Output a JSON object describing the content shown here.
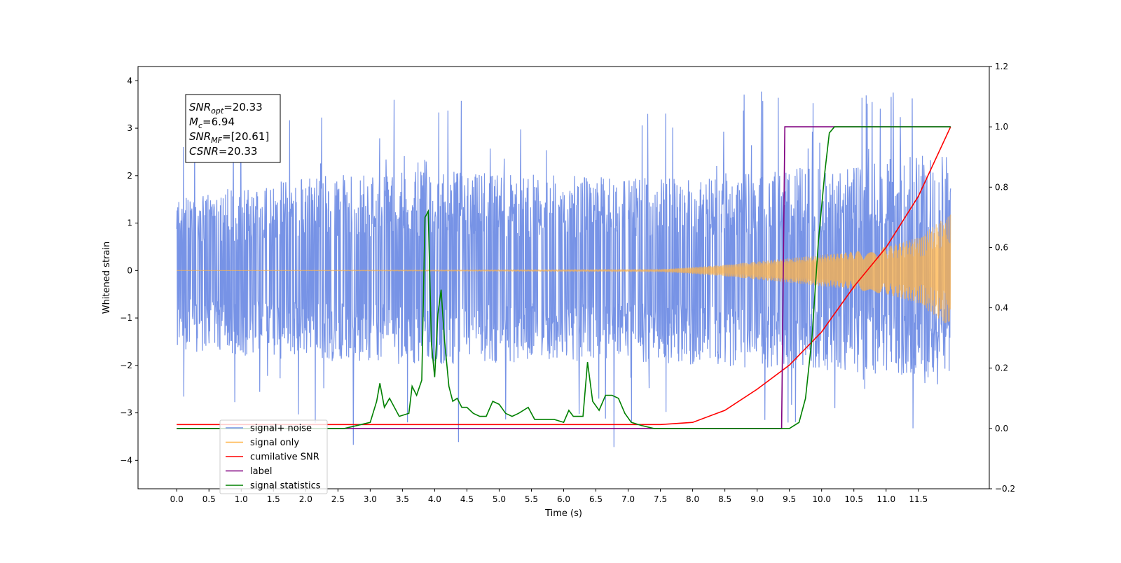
{
  "chart_data": {
    "type": "line",
    "xlabel": "Time (s)",
    "ylabel": "Whitened strain",
    "xlim": [
      -0.6,
      12.6
    ],
    "ylim": [
      -4.6,
      4.3
    ],
    "y2lim": [
      -0.2,
      1.2
    ],
    "x_ticks": [
      "0.0",
      "0.5",
      "1.0",
      "1.5",
      "2.0",
      "2.5",
      "3.0",
      "3.5",
      "4.0",
      "4.5",
      "5.0",
      "5.5",
      "6.0",
      "6.5",
      "7.0",
      "7.5",
      "8.0",
      "8.5",
      "9.0",
      "9.5",
      "10.0",
      "10.5",
      "11.0",
      "11.5"
    ],
    "y_ticks": [
      "4",
      "3",
      "2",
      "1",
      "0",
      "−1",
      "−2",
      "−3",
      "−4"
    ],
    "y2_ticks": [
      "1.2",
      "1.0",
      "0.8",
      "0.6",
      "0.4",
      "0.2",
      "0.0",
      "−0.2"
    ],
    "grid": false,
    "legend_position": "lower-left",
    "annotation": {
      "snr_opt": "=20.33",
      "mc": "=6.94",
      "snr_mf": "=[20.61]",
      "csnr": "=20.33",
      "snr_opt_base": "SNR",
      "snr_opt_sub": "opt",
      "mc_base": "M",
      "mc_sub": "c",
      "snr_mf_base": "SNR",
      "snr_mf_sub": "MF",
      "csnr_base": "CSNR"
    },
    "series": [
      {
        "name": "signal+ noise",
        "axis": "left",
        "color": "#7793e6",
        "description_values": "noise band approx ±2 with spikes to ~±3.9 over t=0..12",
        "envelope_low": [
          [
            0,
            -1.7
          ],
          [
            2,
            -1.9
          ],
          [
            4,
            -2.0
          ],
          [
            6,
            -1.9
          ],
          [
            8,
            -2.0
          ],
          [
            10,
            -2.1
          ],
          [
            12,
            -2.3
          ]
        ],
        "envelope_high": [
          [
            0,
            1.6
          ],
          [
            2,
            2.0
          ],
          [
            4,
            2.1
          ],
          [
            6,
            2.0
          ],
          [
            8,
            2.0
          ],
          [
            10,
            2.2
          ],
          [
            12,
            2.5
          ]
        ]
      },
      {
        "name": "signal only",
        "axis": "left",
        "color": "#ffb347",
        "amplitude": [
          [
            0,
            0.0
          ],
          [
            7.5,
            0.02
          ],
          [
            8.5,
            0.12
          ],
          [
            9.5,
            0.26
          ],
          [
            10.5,
            0.4
          ],
          [
            11.0,
            0.5
          ],
          [
            11.5,
            0.7
          ],
          [
            12.0,
            1.2
          ]
        ]
      },
      {
        "name": "cumilative SNR",
        "axis": "right",
        "color": "#ff0000",
        "points": [
          [
            0,
            0.013
          ],
          [
            7.5,
            0.013
          ],
          [
            8.0,
            0.02
          ],
          [
            8.5,
            0.06
          ],
          [
            9.0,
            0.13
          ],
          [
            9.5,
            0.21
          ],
          [
            10.0,
            0.32
          ],
          [
            10.5,
            0.47
          ],
          [
            11.0,
            0.6
          ],
          [
            11.5,
            0.77
          ],
          [
            12.0,
            1.0
          ]
        ]
      },
      {
        "name": "label",
        "axis": "right",
        "color": "#800080",
        "points": [
          [
            0,
            0.0
          ],
          [
            9.38,
            0.0
          ],
          [
            9.43,
            1.0
          ],
          [
            12.0,
            1.0
          ]
        ]
      },
      {
        "name": "signal statistics",
        "axis": "right",
        "color": "#008000",
        "points": [
          [
            0,
            0.0
          ],
          [
            2.6,
            0.0
          ],
          [
            2.7,
            0.005
          ],
          [
            3.0,
            0.02
          ],
          [
            3.1,
            0.09
          ],
          [
            3.15,
            0.15
          ],
          [
            3.22,
            0.07
          ],
          [
            3.3,
            0.1
          ],
          [
            3.45,
            0.04
          ],
          [
            3.6,
            0.05
          ],
          [
            3.65,
            0.14
          ],
          [
            3.72,
            0.11
          ],
          [
            3.8,
            0.16
          ],
          [
            3.85,
            0.7
          ],
          [
            3.9,
            0.72
          ],
          [
            3.95,
            0.28
          ],
          [
            4.0,
            0.17
          ],
          [
            4.05,
            0.38
          ],
          [
            4.1,
            0.46
          ],
          [
            4.15,
            0.3
          ],
          [
            4.22,
            0.14
          ],
          [
            4.28,
            0.09
          ],
          [
            4.35,
            0.1
          ],
          [
            4.42,
            0.07
          ],
          [
            4.5,
            0.07
          ],
          [
            4.6,
            0.05
          ],
          [
            4.7,
            0.04
          ],
          [
            4.8,
            0.04
          ],
          [
            4.9,
            0.09
          ],
          [
            5.0,
            0.08
          ],
          [
            5.1,
            0.05
          ],
          [
            5.2,
            0.04
          ],
          [
            5.3,
            0.05
          ],
          [
            5.45,
            0.07
          ],
          [
            5.55,
            0.03
          ],
          [
            5.7,
            0.03
          ],
          [
            5.85,
            0.03
          ],
          [
            6.0,
            0.02
          ],
          [
            6.08,
            0.06
          ],
          [
            6.15,
            0.04
          ],
          [
            6.3,
            0.04
          ],
          [
            6.37,
            0.22
          ],
          [
            6.45,
            0.09
          ],
          [
            6.55,
            0.06
          ],
          [
            6.65,
            0.11
          ],
          [
            6.75,
            0.11
          ],
          [
            6.85,
            0.1
          ],
          [
            6.95,
            0.05
          ],
          [
            7.05,
            0.02
          ],
          [
            7.2,
            0.01
          ],
          [
            7.4,
            0.0
          ],
          [
            9.5,
            0.0
          ],
          [
            9.65,
            0.02
          ],
          [
            9.75,
            0.1
          ],
          [
            9.85,
            0.3
          ],
          [
            9.95,
            0.62
          ],
          [
            10.05,
            0.85
          ],
          [
            10.12,
            0.98
          ],
          [
            10.2,
            1.0
          ],
          [
            12.0,
            1.0
          ]
        ]
      }
    ]
  }
}
